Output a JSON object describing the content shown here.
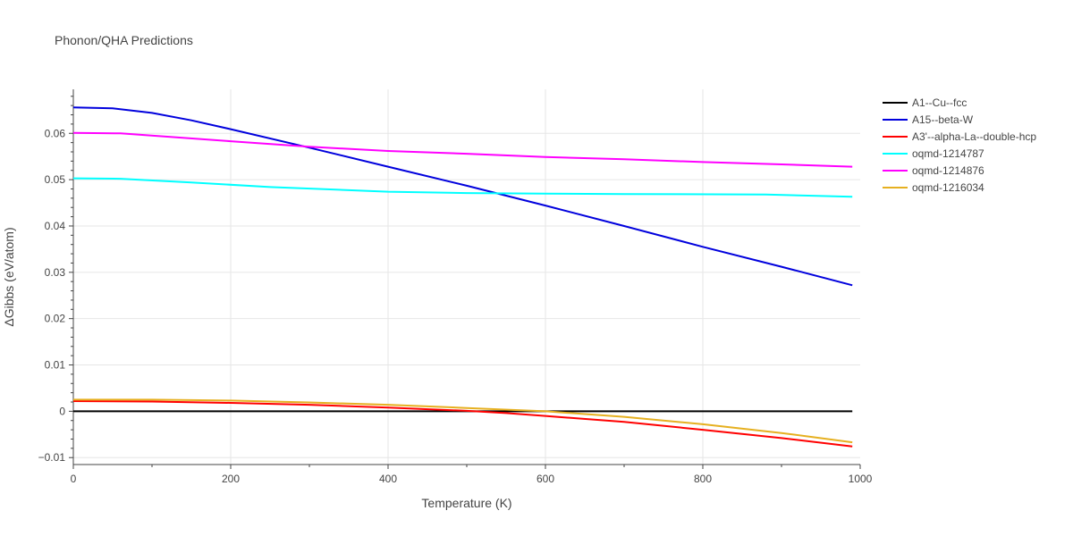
{
  "chart_data": {
    "type": "line",
    "title": "Phonon/QHA Predictions",
    "xlabel": "Temperature (K)",
    "ylabel": "ΔGibbs (eV/atom)",
    "xlim": [
      0,
      1000
    ],
    "ylim": [
      -0.0115,
      0.0695
    ],
    "x_ticks": [
      0,
      200,
      400,
      600,
      800,
      1000
    ],
    "x_tick_labels": [
      "0",
      "200",
      "400",
      "600",
      "800",
      "1000"
    ],
    "y_ticks": [
      -0.01,
      0,
      0.01,
      0.02,
      0.03,
      0.04,
      0.05,
      0.06
    ],
    "y_tick_labels": [
      "−0.01",
      "0",
      "0.01",
      "0.02",
      "0.03",
      "0.04",
      "0.05",
      "0.06"
    ],
    "grid": true,
    "legend_position": "top-right",
    "series": [
      {
        "name": "A1--Cu--fcc",
        "color": "#000000",
        "x": [
          0,
          100,
          200,
          300,
          400,
          500,
          600,
          700,
          800,
          900,
          990
        ],
        "y": [
          0,
          0,
          0,
          0,
          0,
          0,
          0,
          0,
          0,
          0,
          0
        ]
      },
      {
        "name": "A15--beta-W",
        "color": "#0000dd",
        "x": [
          0,
          50,
          100,
          150,
          200,
          300,
          400,
          500,
          600,
          700,
          800,
          900,
          990
        ],
        "y": [
          0.0656,
          0.0654,
          0.0644,
          0.0628,
          0.0609,
          0.0569,
          0.0528,
          0.0487,
          0.0444,
          0.04,
          0.0355,
          0.0312,
          0.0272
        ]
      },
      {
        "name": "A3'--alpha-La--double-hcp",
        "color": "#ff0000",
        "x": [
          0,
          100,
          200,
          300,
          400,
          500,
          550,
          600,
          700,
          800,
          900,
          990
        ],
        "y": [
          0.0022,
          0.0021,
          0.0018,
          0.0014,
          0.0008,
          0.0001,
          -0.0004,
          -0.001,
          -0.0023,
          -0.004,
          -0.0058,
          -0.0076
        ]
      },
      {
        "name": "oqmd-1214787",
        "color": "#00ffff",
        "x": [
          0,
          60,
          150,
          250,
          400,
          500,
          600,
          700,
          880,
          990
        ],
        "y": [
          0.0503,
          0.0502,
          0.0494,
          0.0484,
          0.0474,
          0.0471,
          0.047,
          0.0469,
          0.0468,
          0.0463
        ]
      },
      {
        "name": "oqmd-1214876",
        "color": "#ff00ff",
        "x": [
          0,
          60,
          200,
          300,
          400,
          500,
          600,
          700,
          800,
          900,
          990
        ],
        "y": [
          0.0601,
          0.06,
          0.0583,
          0.0571,
          0.0562,
          0.0556,
          0.0549,
          0.0544,
          0.0538,
          0.0533,
          0.0528
        ]
      },
      {
        "name": "oqmd-1216034",
        "color": "#e6b020",
        "x": [
          0,
          100,
          200,
          300,
          400,
          500,
          600,
          700,
          800,
          900,
          990
        ],
        "y": [
          0.0025,
          0.0025,
          0.0023,
          0.0019,
          0.0014,
          0.0007,
          0.0,
          -0.0012,
          -0.0028,
          -0.0047,
          -0.0067
        ]
      }
    ]
  }
}
